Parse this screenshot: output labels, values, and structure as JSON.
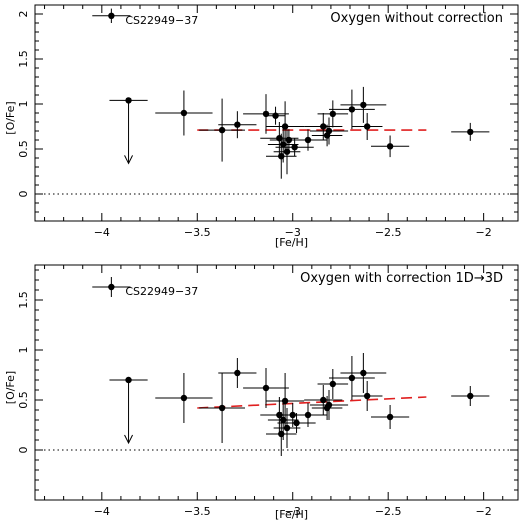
{
  "chart_data": [
    {
      "type": "scatter",
      "title": "Oxygen without correction",
      "xlabel": "[Fe/H]",
      "ylabel": "[O/Fe]",
      "xlim": [
        -4.35,
        -1.82
      ],
      "ylim": [
        -0.3,
        2.1
      ],
      "xticks": [
        -4,
        -3.5,
        -3,
        -2.5,
        -2
      ],
      "xtick_labels": [
        "−4",
        "−3.5",
        "−3",
        "−2.5",
        "−2"
      ],
      "yticks": [
        0,
        0.5,
        1,
        1.5,
        2
      ],
      "ytick_labels": [
        "0",
        "0.5",
        "1",
        "1.5",
        "2"
      ],
      "annotation": {
        "text": "CS22949−37",
        "x": -3.95,
        "y": 1.98
      },
      "zero_line": true,
      "fit_line": {
        "x": [
          -3.5,
          -2.3
        ],
        "y": [
          0.71,
          0.71
        ],
        "color": "#e02020"
      },
      "series": [
        {
          "points": [
            {
              "x": -3.95,
              "y": 1.98,
              "xerr": 0.1,
              "yerr": 0.08
            },
            {
              "x": -3.86,
              "y": 1.04,
              "xerr": 0.1,
              "yerr": 0,
              "upper_limit": true
            },
            {
              "x": -3.57,
              "y": 0.9,
              "xerr": 0.15,
              "yerr": 0.25
            },
            {
              "x": -3.37,
              "y": 0.71,
              "xerr": 0.12,
              "yerr": 0.35
            },
            {
              "x": -3.29,
              "y": 0.77,
              "xerr": 0.1,
              "yerr": 0.15
            },
            {
              "x": -3.14,
              "y": 0.89,
              "xerr": 0.12,
              "yerr": 0.22
            },
            {
              "x": -3.09,
              "y": 0.87,
              "xerr": 0.05,
              "yerr": 0.1
            },
            {
              "x": -3.07,
              "y": 0.62,
              "xerr": 0.1,
              "yerr": 0.18
            },
            {
              "x": -3.06,
              "y": 0.42,
              "xerr": 0.08,
              "yerr": 0.25
            },
            {
              "x": -3.05,
              "y": 0.55,
              "xerr": 0.08,
              "yerr": 0.2
            },
            {
              "x": -3.04,
              "y": 0.75,
              "xerr": 0.1,
              "yerr": 0.28
            },
            {
              "x": -3.03,
              "y": 0.47,
              "xerr": 0.07,
              "yerr": 0.25
            },
            {
              "x": -3.02,
              "y": 0.6,
              "xerr": 0.1,
              "yerr": 0.12
            },
            {
              "x": -2.99,
              "y": 0.52,
              "xerr": 0.1,
              "yerr": 0.1
            },
            {
              "x": -2.92,
              "y": 0.6,
              "xerr": 0.1,
              "yerr": 0.12
            },
            {
              "x": -2.84,
              "y": 0.75,
              "xerr": 0.1,
              "yerr": 0.15
            },
            {
              "x": -2.82,
              "y": 0.65,
              "xerr": 0.08,
              "yerr": 0.12
            },
            {
              "x": -2.81,
              "y": 0.7,
              "xerr": 0.1,
              "yerr": 0.15
            },
            {
              "x": -2.79,
              "y": 0.89,
              "xerr": 0.08,
              "yerr": 0.15
            },
            {
              "x": -2.69,
              "y": 0.94,
              "xerr": 0.12,
              "yerr": 0.22
            },
            {
              "x": -2.63,
              "y": 0.99,
              "xerr": 0.12,
              "yerr": 0.2
            },
            {
              "x": -2.61,
              "y": 0.75,
              "xerr": 0.08,
              "yerr": 0.15
            },
            {
              "x": -2.49,
              "y": 0.53,
              "xerr": 0.1,
              "yerr": 0.12
            },
            {
              "x": -2.07,
              "y": 0.69,
              "xerr": 0.1,
              "yerr": 0.1
            }
          ]
        }
      ]
    },
    {
      "type": "scatter",
      "title": "Oxygen with correction 1D→3D",
      "xlabel": "[Fe/H]",
      "ylabel": "[O/Fe]",
      "xlim": [
        -4.35,
        -1.82
      ],
      "ylim": [
        -0.5,
        1.85
      ],
      "xticks": [
        -4,
        -3.5,
        -3,
        -2.5,
        -2
      ],
      "xtick_labels": [
        "−4",
        "−3.5",
        "−3",
        "−2.5",
        "−2"
      ],
      "yticks": [
        0,
        0.5,
        1,
        1.5
      ],
      "ytick_labels": [
        "0",
        "0.5",
        "1",
        "1.5"
      ],
      "annotation": {
        "text": "CS22949−37",
        "x": -3.95,
        "y": 1.63
      },
      "zero_line": true,
      "fit_line": {
        "x": [
          -3.5,
          -2.3
        ],
        "y": [
          0.42,
          0.53
        ],
        "color": "#e02020"
      },
      "series": [
        {
          "points": [
            {
              "x": -3.95,
              "y": 1.63,
              "xerr": 0.1,
              "yerr": 0.1
            },
            {
              "x": -3.86,
              "y": 0.7,
              "xerr": 0.1,
              "yerr": 0,
              "upper_limit": true
            },
            {
              "x": -3.57,
              "y": 0.52,
              "xerr": 0.15,
              "yerr": 0.25
            },
            {
              "x": -3.37,
              "y": 0.42,
              "xerr": 0.12,
              "yerr": 0.35
            },
            {
              "x": -3.29,
              "y": 0.77,
              "xerr": 0.1,
              "yerr": 0.15
            },
            {
              "x": -3.14,
              "y": 0.62,
              "xerr": 0.12,
              "yerr": 0.2
            },
            {
              "x": -3.07,
              "y": 0.35,
              "xerr": 0.1,
              "yerr": 0.18
            },
            {
              "x": -3.06,
              "y": 0.16,
              "xerr": 0.08,
              "yerr": 0.22
            },
            {
              "x": -3.05,
              "y": 0.3,
              "xerr": 0.08,
              "yerr": 0.2
            },
            {
              "x": -3.04,
              "y": 0.49,
              "xerr": 0.1,
              "yerr": 0.28
            },
            {
              "x": -3.03,
              "y": 0.22,
              "xerr": 0.07,
              "yerr": 0.2
            },
            {
              "x": -3.0,
              "y": 0.35,
              "xerr": 0.1,
              "yerr": 0.12
            },
            {
              "x": -2.98,
              "y": 0.27,
              "xerr": 0.1,
              "yerr": 0.1
            },
            {
              "x": -2.92,
              "y": 0.35,
              "xerr": 0.1,
              "yerr": 0.12
            },
            {
              "x": -2.84,
              "y": 0.5,
              "xerr": 0.1,
              "yerr": 0.15
            },
            {
              "x": -2.82,
              "y": 0.42,
              "xerr": 0.08,
              "yerr": 0.12
            },
            {
              "x": -2.81,
              "y": 0.45,
              "xerr": 0.1,
              "yerr": 0.15
            },
            {
              "x": -2.79,
              "y": 0.66,
              "xerr": 0.08,
              "yerr": 0.15
            },
            {
              "x": -2.69,
              "y": 0.72,
              "xerr": 0.12,
              "yerr": 0.22
            },
            {
              "x": -2.63,
              "y": 0.77,
              "xerr": 0.12,
              "yerr": 0.2
            },
            {
              "x": -2.61,
              "y": 0.54,
              "xerr": 0.08,
              "yerr": 0.15
            },
            {
              "x": -2.49,
              "y": 0.33,
              "xerr": 0.1,
              "yerr": 0.12
            },
            {
              "x": -2.07,
              "y": 0.54,
              "xerr": 0.1,
              "yerr": 0.1
            }
          ]
        }
      ]
    }
  ]
}
